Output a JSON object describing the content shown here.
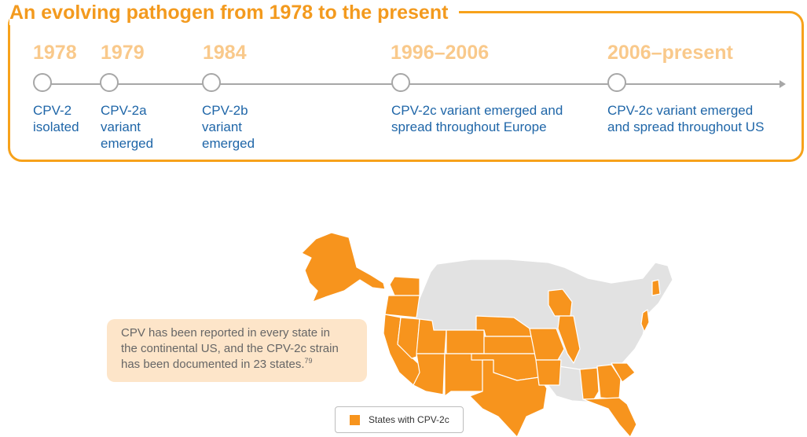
{
  "title": "An evolving pathogen from 1978 to the present",
  "timeline": [
    {
      "year": "1978",
      "lines": [
        "CPV-2",
        "isolated"
      ]
    },
    {
      "year": "1979",
      "lines": [
        "CPV-2a",
        "variant",
        "emerged"
      ]
    },
    {
      "year": "1984",
      "lines": [
        "CPV-2b",
        "variant",
        "emerged"
      ]
    },
    {
      "year": "1996–2006",
      "lines": [
        "CPV-2c variant emerged and",
        "spread throughout Europe"
      ]
    },
    {
      "year": "2006–present",
      "lines": [
        "CPV-2c variant emerged",
        "and spread throughout US"
      ]
    }
  ],
  "callout": {
    "line1": "CPV has been reported in every state in",
    "line2": "the continental US, and the CPV-2c strain",
    "line3": "has been documented in 23 states.",
    "superscript": "79"
  },
  "map": {
    "highlighted_states": [
      "Washington",
      "Oregon",
      "California",
      "Nevada",
      "Utah",
      "Arizona",
      "Colorado",
      "New Mexico",
      "Kansas",
      "Nebraska",
      "Oklahoma",
      "Texas",
      "Missouri",
      "Arkansas",
      "Wisconsin",
      "Illinois",
      "Alabama",
      "Georgia",
      "South Carolina",
      "Florida",
      "New Jersey",
      "New Hampshire",
      "Alaska"
    ],
    "highlight_color": "#f7941d",
    "base_color": "#e2e2e2"
  },
  "legend": {
    "label": "States with CPV-2c",
    "color": "#f7941d"
  }
}
